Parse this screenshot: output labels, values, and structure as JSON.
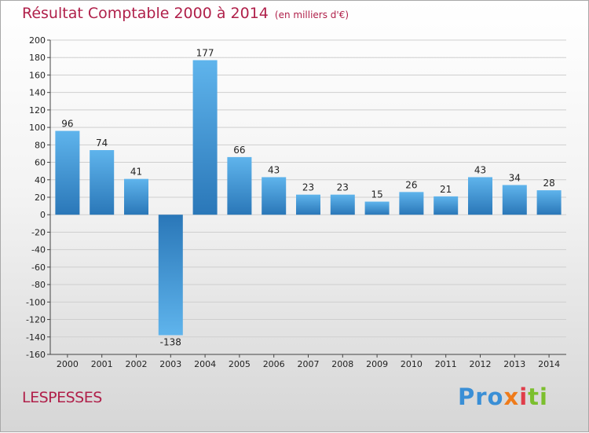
{
  "header": {
    "title": "Résultat Comptable 2000 à 2014",
    "unit": "(en milliers d'€)"
  },
  "commune": "LESPESSES",
  "logo": {
    "p1": "Pro",
    "p2": "x",
    "p3": "i",
    "p4": "ti"
  },
  "colors": {
    "title": "#b0204a",
    "bar_top": "#5fb4ec",
    "bar_bottom": "#2a77b8",
    "grid": "#cfcfcf"
  },
  "chart_data": {
    "type": "bar",
    "title": "Résultat Comptable 2000 à 2014",
    "ylabel": "en milliers d'€",
    "categories": [
      "2000",
      "2001",
      "2002",
      "2003",
      "2004",
      "2005",
      "2006",
      "2007",
      "2008",
      "2009",
      "2010",
      "2011",
      "2012",
      "2013",
      "2014"
    ],
    "values": [
      96,
      74,
      41,
      -138,
      177,
      66,
      43,
      23,
      23,
      15,
      26,
      21,
      43,
      34,
      28
    ],
    "data_labels": [
      "96",
      "74",
      "41",
      "-138",
      "177",
      "66",
      "43",
      "23",
      "23",
      "15",
      "26",
      "21",
      "43",
      "34",
      "28"
    ],
    "ylim": [
      -160,
      200
    ],
    "yticks": [
      200,
      180,
      160,
      140,
      120,
      100,
      80,
      60,
      40,
      20,
      0,
      -20,
      -40,
      -60,
      -80,
      -100,
      -120,
      -140,
      -160
    ],
    "grid": true
  }
}
